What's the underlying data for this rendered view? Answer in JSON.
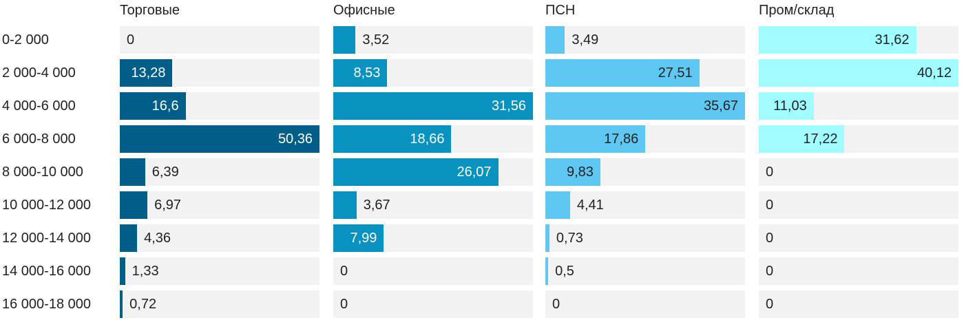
{
  "chart_data": {
    "type": "bar",
    "orientation": "horizontal",
    "layout": "small-multiples",
    "categories": [
      "0-2 000",
      "2 000-4 000",
      "4 000-6 000",
      "6 000-8 000",
      "8 000-10 000",
      "10 000-12 000",
      "12 000-14 000",
      "14 000-16 000",
      "16 000-18 000"
    ],
    "series": [
      {
        "name": "Торговые",
        "color": "#005e89",
        "label_color": "#ffffff",
        "values": [
          0,
          13.28,
          16.6,
          50.36,
          6.39,
          6.97,
          4.36,
          1.33,
          0.72
        ],
        "labels": [
          "0",
          "13,28",
          "16,6",
          "50,36",
          "6,39",
          "6,97",
          "4,36",
          "1,33",
          "0,72"
        ]
      },
      {
        "name": "Офисные",
        "color": "#0892c0",
        "label_color": "#ffffff",
        "values": [
          3.52,
          8.53,
          31.56,
          18.66,
          26.07,
          3.67,
          7.99,
          0,
          0
        ],
        "labels": [
          "3,52",
          "8,53",
          "31,56",
          "18,66",
          "26,07",
          "3,67",
          "7,99",
          "0",
          "0"
        ]
      },
      {
        "name": "ПСН",
        "color": "#5ec8f2",
        "label_color": "#222222",
        "values": [
          3.49,
          27.51,
          35.67,
          17.86,
          9.83,
          4.41,
          0.73,
          0.5,
          0
        ],
        "labels": [
          "3,49",
          "27,51",
          "35,67",
          "17,86",
          "9,83",
          "4,41",
          "0,73",
          "0,5",
          "0"
        ]
      },
      {
        "name": "Пром/склад",
        "color": "#a0fcff",
        "label_color": "#222222",
        "values": [
          31.62,
          40.12,
          11.03,
          17.22,
          0,
          0,
          0,
          0,
          0
        ],
        "labels": [
          "31,62",
          "40,12",
          "11,03",
          "17,22",
          "0",
          "0",
          "0",
          "0",
          "0"
        ]
      }
    ],
    "title": "",
    "xlabel": "",
    "ylabel": "",
    "grid": false,
    "legend": "none"
  }
}
